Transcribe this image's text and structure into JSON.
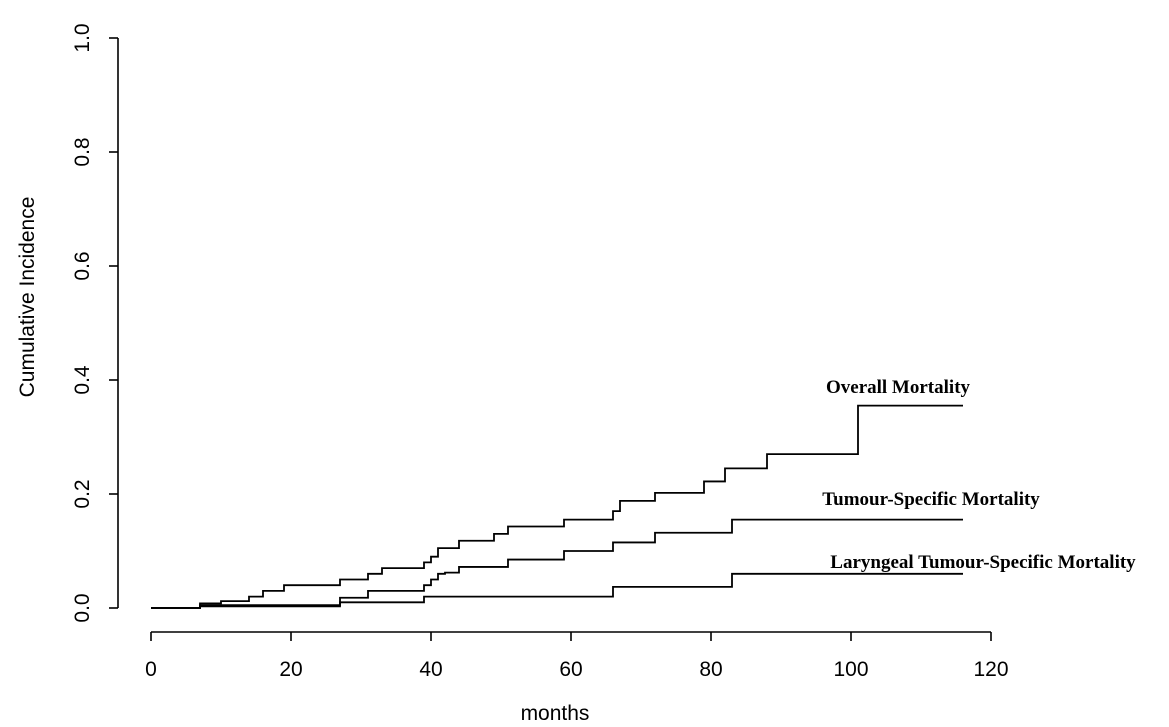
{
  "chart_data": {
    "type": "line",
    "title": "",
    "xlabel": "months",
    "ylabel": "Cumulative Incidence",
    "xlim": [
      0,
      120
    ],
    "ylim": [
      0,
      1
    ],
    "x_ticks": [
      0,
      20,
      40,
      60,
      80,
      100,
      120
    ],
    "y_ticks": [
      "0.0",
      "0.2",
      "0.4",
      "0.6",
      "0.8",
      "1.0"
    ],
    "y_tick_values": [
      0,
      0.2,
      0.4,
      0.6,
      0.8,
      1.0
    ],
    "grid": false,
    "legend": "none (direct labels)",
    "series": [
      {
        "name": "Overall Mortality",
        "step": true,
        "x": [
          0,
          7,
          10,
          14,
          16,
          19,
          27,
          31,
          33,
          36,
          39,
          40,
          41,
          44,
          49,
          51,
          59,
          66,
          67,
          69,
          72,
          79,
          82,
          88,
          101,
          116
        ],
        "y": [
          0.0,
          0.008,
          0.012,
          0.02,
          0.03,
          0.04,
          0.05,
          0.06,
          0.07,
          0.07,
          0.08,
          0.09,
          0.105,
          0.118,
          0.13,
          0.143,
          0.155,
          0.17,
          0.188,
          0.188,
          0.202,
          0.222,
          0.245,
          0.27,
          0.355,
          0.355
        ]
      },
      {
        "name": "Tumour-Specific Mortality",
        "step": true,
        "x": [
          0,
          7,
          27,
          31,
          39,
          40,
          41,
          42,
          44,
          51,
          59,
          66,
          72,
          83,
          116
        ],
        "y": [
          0.0,
          0.005,
          0.018,
          0.03,
          0.04,
          0.05,
          0.06,
          0.062,
          0.072,
          0.085,
          0.1,
          0.115,
          0.132,
          0.155,
          0.155
        ]
      },
      {
        "name": "Laryngeal Tumour-Specific Mortality",
        "step": true,
        "x": [
          0,
          7,
          27,
          39,
          66,
          83,
          116
        ],
        "y": [
          0.0,
          0.003,
          0.01,
          0.02,
          0.037,
          0.06,
          0.06
        ]
      }
    ]
  }
}
